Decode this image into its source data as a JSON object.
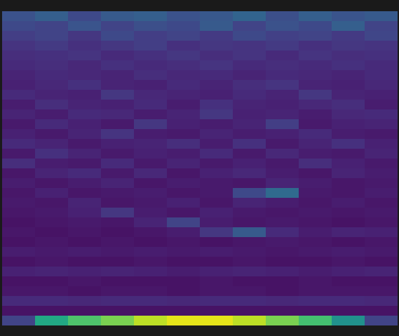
{
  "chart_data": {
    "type": "heatmap",
    "color": "viridis",
    "color_range": [
      0,
      1
    ],
    "tick_labels": false,
    "cells": [
      [
        0.25,
        0.3,
        0.22,
        0.28,
        0.3,
        0.25,
        0.27,
        0.32,
        0.24,
        0.3,
        0.26,
        0.28
      ],
      [
        0.22,
        0.2,
        0.26,
        0.2,
        0.24,
        0.22,
        0.28,
        0.2,
        0.25,
        0.22,
        0.3,
        0.2
      ],
      [
        0.18,
        0.2,
        0.16,
        0.22,
        0.18,
        0.2,
        0.17,
        0.22,
        0.19,
        0.2,
        0.17,
        0.21
      ],
      [
        0.15,
        0.17,
        0.14,
        0.16,
        0.18,
        0.14,
        0.16,
        0.15,
        0.17,
        0.14,
        0.16,
        0.15
      ],
      [
        0.13,
        0.14,
        0.15,
        0.12,
        0.14,
        0.16,
        0.13,
        0.15,
        0.12,
        0.15,
        0.13,
        0.14
      ],
      [
        0.12,
        0.13,
        0.11,
        0.14,
        0.12,
        0.13,
        0.15,
        0.12,
        0.13,
        0.12,
        0.14,
        0.12
      ],
      [
        0.1,
        0.12,
        0.11,
        0.1,
        0.13,
        0.11,
        0.12,
        0.1,
        0.12,
        0.11,
        0.1,
        0.12
      ],
      [
        0.09,
        0.11,
        0.14,
        0.1,
        0.09,
        0.12,
        0.1,
        0.13,
        0.15,
        0.1,
        0.09,
        0.11
      ],
      [
        0.12,
        0.1,
        0.09,
        0.16,
        0.11,
        0.1,
        0.09,
        0.12,
        0.1,
        0.16,
        0.1,
        0.09
      ],
      [
        0.08,
        0.13,
        0.1,
        0.09,
        0.12,
        0.08,
        0.14,
        0.1,
        0.09,
        0.11,
        0.13,
        0.08
      ],
      [
        0.1,
        0.08,
        0.12,
        0.11,
        0.08,
        0.1,
        0.16,
        0.09,
        0.1,
        0.08,
        0.11,
        0.12
      ],
      [
        0.07,
        0.12,
        0.09,
        0.07,
        0.16,
        0.09,
        0.08,
        0.1,
        0.18,
        0.07,
        0.09,
        0.1
      ],
      [
        0.09,
        0.07,
        0.1,
        0.15,
        0.08,
        0.07,
        0.1,
        0.08,
        0.09,
        0.12,
        0.08,
        0.07
      ],
      [
        0.12,
        0.1,
        0.07,
        0.09,
        0.1,
        0.13,
        0.08,
        0.14,
        0.07,
        0.1,
        0.14,
        0.09
      ],
      [
        0.07,
        0.14,
        0.1,
        0.07,
        0.09,
        0.08,
        0.12,
        0.07,
        0.11,
        0.08,
        0.07,
        0.1
      ],
      [
        0.13,
        0.08,
        0.07,
        0.12,
        0.07,
        0.1,
        0.07,
        0.09,
        0.07,
        0.13,
        0.09,
        0.07
      ],
      [
        0.06,
        0.1,
        0.12,
        0.07,
        0.11,
        0.06,
        0.09,
        0.11,
        0.08,
        0.06,
        0.1,
        0.08
      ],
      [
        0.08,
        0.06,
        0.08,
        0.1,
        0.06,
        0.08,
        0.07,
        0.06,
        0.1,
        0.08,
        0.06,
        0.07
      ],
      [
        0.06,
        0.09,
        0.06,
        0.07,
        0.08,
        0.06,
        0.07,
        0.22,
        0.34,
        0.07,
        0.06,
        0.08
      ],
      [
        0.07,
        0.06,
        0.1,
        0.06,
        0.07,
        0.09,
        0.06,
        0.1,
        0.08,
        0.06,
        0.08,
        0.06
      ],
      [
        0.06,
        0.07,
        0.09,
        0.16,
        0.08,
        0.06,
        0.09,
        0.07,
        0.06,
        0.07,
        0.06,
        0.07
      ],
      [
        0.05,
        0.06,
        0.07,
        0.06,
        0.1,
        0.2,
        0.08,
        0.06,
        0.07,
        0.06,
        0.05,
        0.06
      ],
      [
        0.06,
        0.05,
        0.06,
        0.05,
        0.06,
        0.08,
        0.16,
        0.28,
        0.12,
        0.08,
        0.1,
        0.09
      ],
      [
        0.05,
        0.06,
        0.05,
        0.06,
        0.05,
        0.06,
        0.05,
        0.06,
        0.07,
        0.06,
        0.05,
        0.06
      ],
      [
        0.08,
        0.07,
        0.08,
        0.07,
        0.08,
        0.07,
        0.08,
        0.07,
        0.06,
        0.07,
        0.08,
        0.07
      ],
      [
        0.05,
        0.06,
        0.05,
        0.05,
        0.06,
        0.05,
        0.05,
        0.06,
        0.05,
        0.05,
        0.06,
        0.05
      ],
      [
        0.09,
        0.1,
        0.09,
        0.1,
        0.09,
        0.08,
        0.09,
        0.1,
        0.09,
        0.08,
        0.09,
        0.1
      ],
      [
        0.05,
        0.05,
        0.06,
        0.05,
        0.05,
        0.05,
        0.06,
        0.05,
        0.05,
        0.06,
        0.05,
        0.05
      ],
      [
        0.06,
        0.06,
        0.05,
        0.06,
        0.06,
        0.05,
        0.06,
        0.06,
        0.05,
        0.06,
        0.06,
        0.06
      ],
      [
        0.12,
        0.12,
        0.11,
        0.12,
        0.12,
        0.11,
        0.12,
        0.12,
        0.11,
        0.12,
        0.12,
        0.11
      ],
      [
        0.05,
        0.05,
        0.05,
        0.05,
        0.05,
        0.05,
        0.05,
        0.05,
        0.05,
        0.05,
        0.05,
        0.05
      ],
      [
        0.2,
        0.6,
        0.72,
        0.8,
        0.9,
        0.96,
        0.96,
        0.9,
        0.8,
        0.7,
        0.5,
        0.2
      ]
    ]
  }
}
